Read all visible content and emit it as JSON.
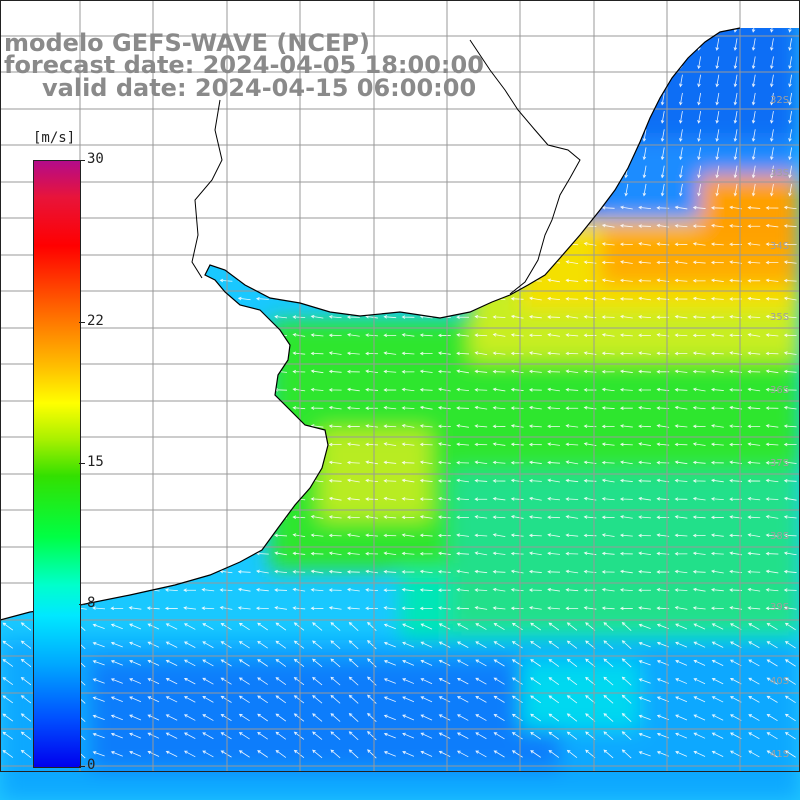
{
  "title": {
    "line1": "modelo GEFS-WAVE (NCEP)",
    "line2": "forecast date: 2024-04-05 18:00:00",
    "line3": "valid date: 2024-04-15 06:00:00"
  },
  "colorbar": {
    "unit": "[m/s]",
    "ticks": [
      "30",
      "22",
      "15",
      "8",
      "0"
    ],
    "tick_values": [
      30,
      22,
      15,
      8,
      0
    ]
  },
  "lat_labels": [
    "32S",
    "33S",
    "34S",
    "35S",
    "36S",
    "37S",
    "38S",
    "39S",
    "40S",
    "41S"
  ],
  "colors": {
    "land": "#ffffff",
    "coast": "#000000",
    "grid": "#999999",
    "title_text": "#8a8a8a"
  }
}
